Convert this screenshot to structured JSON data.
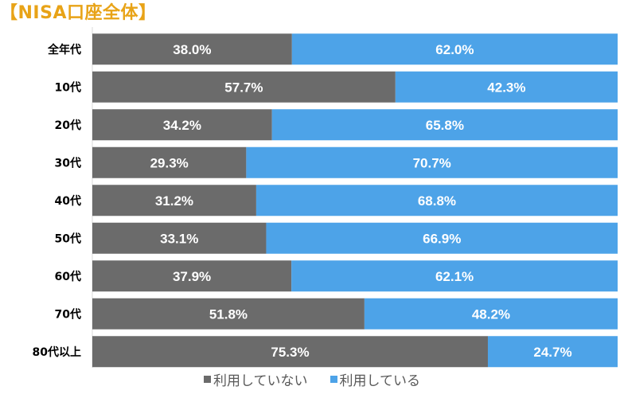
{
  "title": "【NISA口座全体】",
  "colors": {
    "title": "#E8A317",
    "not_using": "#6B6B6B",
    "using": "#4DA3E8",
    "axis": "#D9D9D9",
    "label_text": "#000000",
    "value_text": "#FFFFFF"
  },
  "chart_data": {
    "type": "bar",
    "orientation": "horizontal",
    "stacked": true,
    "percent_stacked": true,
    "categories": [
      "全年代",
      "10代",
      "20代",
      "30代",
      "40代",
      "50代",
      "60代",
      "70代",
      "80代以上"
    ],
    "series": [
      {
        "name": "利用していない",
        "values": [
          38.0,
          57.7,
          34.2,
          29.3,
          31.2,
          33.1,
          37.9,
          51.8,
          75.3
        ]
      },
      {
        "name": "利用している",
        "values": [
          62.0,
          42.3,
          65.8,
          70.7,
          68.8,
          66.9,
          62.1,
          48.2,
          24.7
        ]
      }
    ],
    "value_labels": [
      [
        "38.0%",
        "57.7%",
        "34.2%",
        "29.3%",
        "31.2%",
        "33.1%",
        "37.9%",
        "51.8%",
        "75.3%"
      ],
      [
        "62.0%",
        "42.3%",
        "65.8%",
        "70.7%",
        "68.8%",
        "66.9%",
        "62.1%",
        "48.2%",
        "24.7%"
      ]
    ],
    "xlim": [
      0,
      100
    ],
    "grid": false,
    "legend_position": "bottom"
  },
  "legend": [
    {
      "label": "利用していない",
      "icon": "square-gray"
    },
    {
      "label": "利用している",
      "icon": "square-blue"
    }
  ]
}
